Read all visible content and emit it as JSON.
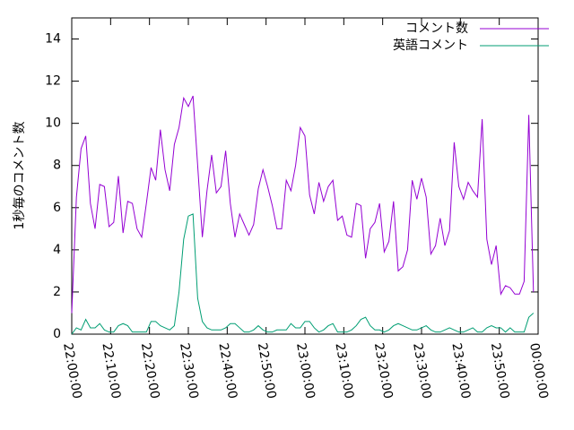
{
  "chart_data": {
    "type": "line",
    "ylabel": "1秒毎のコメント数",
    "xlim": [
      0,
      120
    ],
    "xticks": [
      {
        "value": 0,
        "label": "22:00:00"
      },
      {
        "value": 10,
        "label": "22:10:00"
      },
      {
        "value": 20,
        "label": "22:20:00"
      },
      {
        "value": 30,
        "label": "22:30:00"
      },
      {
        "value": 40,
        "label": "22:40:00"
      },
      {
        "value": 50,
        "label": "22:50:00"
      },
      {
        "value": 60,
        "label": "23:00:00"
      },
      {
        "value": 70,
        "label": "23:10:00"
      },
      {
        "value": 80,
        "label": "23:20:00"
      },
      {
        "value": 90,
        "label": "23:30:00"
      },
      {
        "value": 100,
        "label": "23:40:00"
      },
      {
        "value": 110,
        "label": "23:50:00"
      },
      {
        "value": 120,
        "label": "00:00:00"
      }
    ],
    "ylim": [
      0,
      15
    ],
    "yticks": [
      0,
      2,
      4,
      6,
      8,
      10,
      12,
      14
    ],
    "legend": "top-right",
    "x": [
      0,
      1.2,
      2.4,
      3.6,
      4.8,
      6,
      7.2,
      8.4,
      9.6,
      10.8,
      12,
      13.2,
      14.4,
      15.6,
      16.8,
      18,
      19.2,
      20.4,
      21.6,
      22.8,
      24,
      25.2,
      26.4,
      27.6,
      28.8,
      30,
      31.2,
      32.4,
      33.6,
      34.8,
      36,
      37.2,
      38.4,
      39.6,
      40.8,
      42,
      43.2,
      44.4,
      45.6,
      46.8,
      48,
      49.2,
      50.4,
      51.6,
      52.8,
      54,
      55.2,
      56.4,
      57.6,
      58.8,
      60,
      61.2,
      62.4,
      63.6,
      64.8,
      66,
      67.2,
      68.4,
      69.6,
      70.8,
      72,
      73.2,
      74.4,
      75.6,
      76.8,
      78,
      79.2,
      80.4,
      81.6,
      82.8,
      84,
      85.2,
      86.4,
      87.6,
      88.8,
      90,
      91.2,
      92.4,
      93.6,
      94.8,
      96,
      97.2,
      98.4,
      99.6,
      100.8,
      102,
      103.2,
      104.4,
      105.6,
      106.8,
      108,
      109.2,
      110.4,
      111.6,
      112.8,
      114,
      115.2,
      116.4,
      117.6,
      118.8
    ],
    "series": [
      {
        "name": "コメント数",
        "color": "#9400d3",
        "values": [
          1.0,
          6.5,
          8.8,
          9.4,
          6.2,
          5.0,
          7.1,
          7.0,
          5.1,
          5.3,
          7.5,
          4.8,
          6.3,
          6.2,
          5.0,
          4.6,
          6.2,
          7.9,
          7.3,
          9.7,
          7.8,
          6.8,
          9.0,
          9.8,
          11.2,
          10.8,
          11.3,
          8.0,
          4.6,
          6.8,
          8.5,
          6.7,
          7.0,
          8.7,
          6.2,
          4.6,
          5.7,
          5.2,
          4.7,
          5.2,
          6.9,
          7.8,
          7.0,
          6.1,
          5.0,
          5.0,
          7.3,
          6.8,
          8.0,
          9.8,
          9.4,
          6.6,
          5.7,
          7.2,
          6.3,
          7.0,
          7.3,
          5.4,
          5.6,
          4.7,
          4.6,
          6.2,
          6.1,
          3.6,
          5.0,
          5.3,
          6.2,
          3.9,
          4.4,
          6.3,
          3.0,
          3.2,
          4.0,
          7.3,
          6.4,
          7.4,
          6.5,
          3.8,
          4.2,
          5.5,
          4.2,
          4.9,
          9.1,
          7.0,
          6.4,
          7.2,
          6.8,
          6.5,
          10.2,
          4.5,
          3.3,
          4.2,
          1.9,
          2.3,
          2.2,
          1.9,
          1.9,
          2.5,
          10.4,
          2.0
        ]
      },
      {
        "name": "英語コメント",
        "color": "#009e73",
        "values": [
          0.0,
          0.3,
          0.2,
          0.7,
          0.3,
          0.3,
          0.5,
          0.2,
          0.1,
          0.1,
          0.4,
          0.5,
          0.4,
          0.1,
          0.1,
          0.1,
          0.1,
          0.6,
          0.6,
          0.4,
          0.3,
          0.2,
          0.4,
          2.0,
          4.5,
          5.6,
          5.7,
          1.7,
          0.6,
          0.3,
          0.2,
          0.2,
          0.2,
          0.3,
          0.5,
          0.5,
          0.3,
          0.1,
          0.1,
          0.2,
          0.4,
          0.2,
          0.1,
          0.1,
          0.2,
          0.2,
          0.2,
          0.5,
          0.3,
          0.3,
          0.6,
          0.6,
          0.3,
          0.1,
          0.2,
          0.4,
          0.5,
          0.1,
          0.1,
          0.1,
          0.2,
          0.4,
          0.7,
          0.8,
          0.4,
          0.2,
          0.2,
          0.1,
          0.2,
          0.4,
          0.5,
          0.4,
          0.3,
          0.2,
          0.2,
          0.3,
          0.4,
          0.2,
          0.1,
          0.1,
          0.2,
          0.3,
          0.2,
          0.1,
          0.1,
          0.2,
          0.3,
          0.1,
          0.1,
          0.3,
          0.4,
          0.3,
          0.3,
          0.1,
          0.3,
          0.1,
          0.1,
          0.1,
          0.8,
          1.0
        ]
      }
    ]
  }
}
